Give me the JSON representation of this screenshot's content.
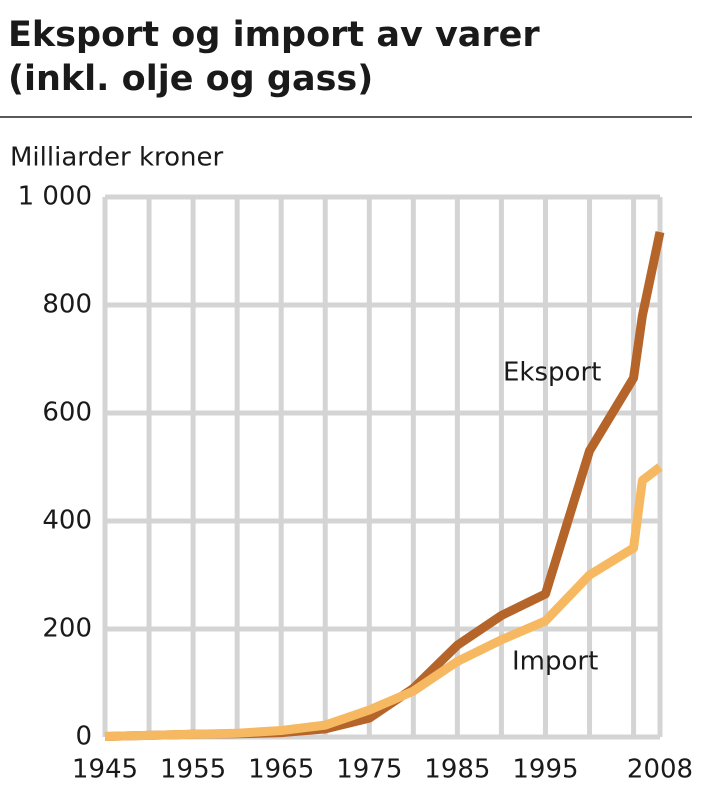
{
  "chart_data": {
    "type": "line",
    "title": [
      "Eksport og import av varer",
      "(inkl. olje og gass)"
    ],
    "y_label": "Milliarder kroner",
    "x": [
      1945,
      1950,
      1955,
      1960,
      1965,
      1970,
      1975,
      1980,
      1985,
      1990,
      1995,
      2000,
      2005,
      2006,
      2008
    ],
    "series": [
      {
        "name": "Eksport",
        "color": "#b5652a",
        "values": [
          1,
          3,
          5,
          6,
          8,
          15,
          35,
          90,
          170,
          225,
          265,
          530,
          665,
          780,
          935
        ]
      },
      {
        "name": "Import",
        "color": "#f6b962",
        "values": [
          1,
          3,
          5,
          7,
          12,
          22,
          50,
          85,
          140,
          180,
          215,
          300,
          350,
          475,
          500
        ]
      }
    ],
    "xlim": [
      1945,
      2008
    ],
    "ylim": [
      0,
      1000
    ],
    "xticks": [
      1945,
      1955,
      1965,
      1975,
      1985,
      1995,
      2008
    ],
    "xgrid": [
      1945,
      1950,
      1955,
      1960,
      1965,
      1970,
      1975,
      1980,
      1985,
      1990,
      1995,
      2000,
      2005,
      2008
    ],
    "yticks": [
      0,
      200,
      400,
      600,
      800,
      {
        "value": 1000,
        "label": "1 000"
      }
    ],
    "grid": true
  }
}
